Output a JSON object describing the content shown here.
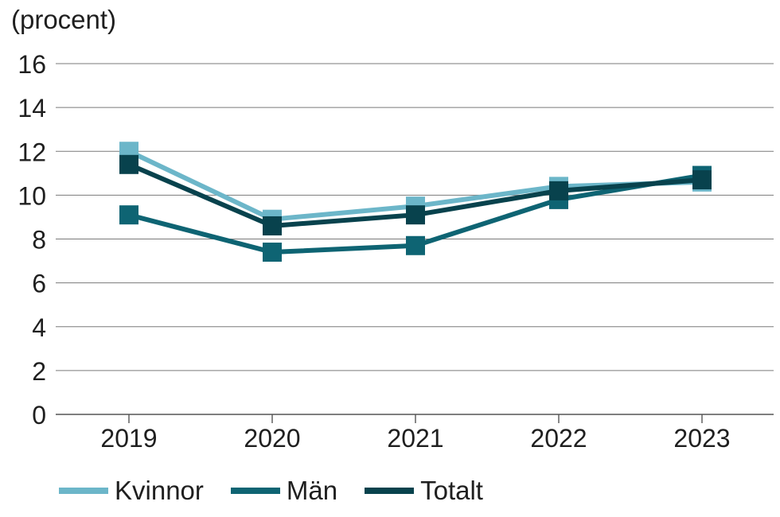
{
  "chart_data": {
    "type": "line",
    "ylabel": "(procent)",
    "x": [
      "2019",
      "2020",
      "2021",
      "2022",
      "2023"
    ],
    "ylim": [
      0,
      16
    ],
    "yticks": [
      0,
      2,
      4,
      6,
      8,
      10,
      12,
      14,
      16
    ],
    "grid": true,
    "legend": "bottom-left",
    "series": [
      {
        "name": "Kvinnor",
        "color": "#6cb6c9",
        "values": [
          12.0,
          8.9,
          9.5,
          10.4,
          10.6
        ]
      },
      {
        "name": "Män",
        "color": "#0e6473",
        "values": [
          9.1,
          7.4,
          7.7,
          9.8,
          10.9
        ]
      },
      {
        "name": "Totalt",
        "color": "#08424d",
        "values": [
          11.4,
          8.6,
          9.1,
          10.2,
          10.7
        ]
      }
    ]
  }
}
